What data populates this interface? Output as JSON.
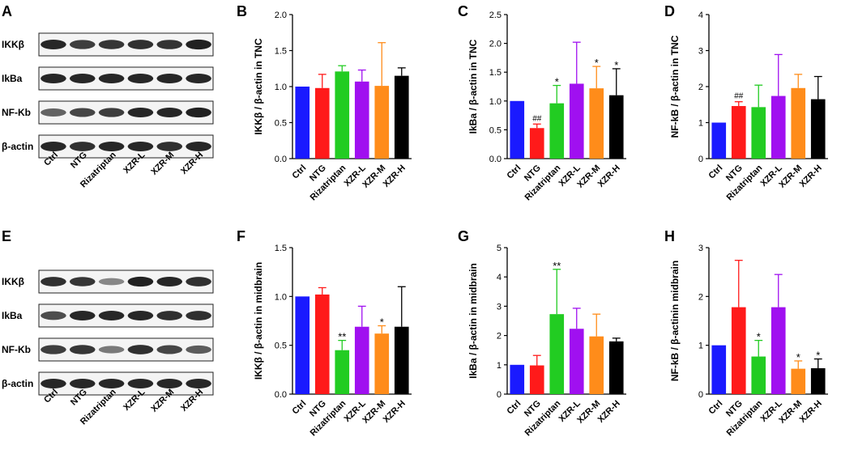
{
  "panel_letters": [
    "A",
    "B",
    "C",
    "D",
    "E",
    "F",
    "G",
    "H"
  ],
  "lanes": [
    "Ctrl",
    "NTG",
    "Rizatriptan",
    "XZR-L",
    "XZR-M",
    "XZR-H"
  ],
  "blots": [
    {
      "letter": "A",
      "rows": [
        "IKKβ",
        "IkBa",
        "NF-Kb",
        "β-actin"
      ]
    },
    {
      "letter": "E",
      "rows": [
        "IKKβ",
        "IkBa",
        "NF-Kb",
        "β-actin"
      ]
    }
  ],
  "colors": [
    "#1a1aff",
    "#ff1a1a",
    "#22cc22",
    "#a010f0",
    "#ff8c1a",
    "#000000"
  ],
  "chart_data": [
    {
      "letter": "B",
      "type": "bar",
      "ylabel": "IKKβ / β-actin in TNC",
      "ylim": [
        0,
        2.0
      ],
      "ticks": [
        "0.0",
        "0.5",
        "1.0",
        "1.5",
        "2.0"
      ],
      "tick_values": [
        0,
        0.5,
        1.0,
        1.5,
        2.0
      ],
      "categories": [
        "Ctrl",
        "NTG",
        "Rizatriptan",
        "XZR-L",
        "XZR-M",
        "XZR-H"
      ],
      "values": [
        1.0,
        0.98,
        1.21,
        1.07,
        1.01,
        1.15
      ],
      "errors": [
        0,
        0.19,
        0.08,
        0.16,
        0.6,
        0.11
      ],
      "sig": [
        "",
        "",
        "",
        "",
        "",
        ""
      ]
    },
    {
      "letter": "C",
      "type": "bar",
      "ylabel": "IkBa / β-actin in TNC",
      "ylim": [
        0,
        2.5
      ],
      "ticks": [
        "0.0",
        "0.5",
        "1.0",
        "1.5",
        "2.0",
        "2.5"
      ],
      "tick_values": [
        0,
        0.5,
        1.0,
        1.5,
        2.0,
        2.5
      ],
      "categories": [
        "Ctrl",
        "NTG",
        "Rizatriptan",
        "XZR-L",
        "XZR-M",
        "XZR-H"
      ],
      "values": [
        1.0,
        0.53,
        0.96,
        1.3,
        1.22,
        1.1
      ],
      "errors": [
        0,
        0.07,
        0.31,
        0.72,
        0.38,
        0.46
      ],
      "sig": [
        "",
        "##",
        "*",
        "",
        "*",
        "*"
      ]
    },
    {
      "letter": "D",
      "type": "bar",
      "ylabel": "NF-kB / β-actin in TNC",
      "ylim": [
        0,
        4
      ],
      "ticks": [
        "0",
        "1",
        "2",
        "3",
        "4"
      ],
      "tick_values": [
        0,
        1,
        2,
        3,
        4
      ],
      "categories": [
        "Ctrl",
        "NTG",
        "Rizatriptan",
        "XZR-L",
        "XZR-M",
        "XZR-H"
      ],
      "values": [
        1.0,
        1.46,
        1.43,
        1.74,
        1.96,
        1.65
      ],
      "errors": [
        0,
        0.12,
        0.61,
        1.15,
        0.38,
        0.63
      ],
      "sig": [
        "",
        "##",
        "",
        "",
        "",
        ""
      ]
    },
    {
      "letter": "F",
      "type": "bar",
      "ylabel": "IKKβ / β-actin in midbrain",
      "ylim": [
        0,
        1.5
      ],
      "ticks": [
        "0.0",
        "0.5",
        "1.0",
        "1.5"
      ],
      "tick_values": [
        0,
        0.5,
        1.0,
        1.5
      ],
      "categories": [
        "Ctrl",
        "NTG",
        "Rizatriptan",
        "XZR-L",
        "XZR-M",
        "XZR-H"
      ],
      "values": [
        1.0,
        1.02,
        0.45,
        0.69,
        0.62,
        0.69
      ],
      "errors": [
        0,
        0.07,
        0.1,
        0.21,
        0.08,
        0.41
      ],
      "sig": [
        "",
        "",
        "**",
        "",
        "*",
        ""
      ]
    },
    {
      "letter": "G",
      "type": "bar",
      "ylabel": "IkBa / β-actin in midbrain",
      "ylim": [
        0,
        5
      ],
      "ticks": [
        "0",
        "1",
        "2",
        "3",
        "4",
        "5"
      ],
      "tick_values": [
        0,
        1,
        2,
        3,
        4,
        5
      ],
      "categories": [
        "Ctrl",
        "NTG",
        "Rizatriptan",
        "XZR-L",
        "XZR-M",
        "XZR-H"
      ],
      "values": [
        1.0,
        0.98,
        2.73,
        2.23,
        1.97,
        1.8
      ],
      "errors": [
        0,
        0.34,
        1.53,
        0.7,
        0.76,
        0.11
      ],
      "sig": [
        "",
        "",
        "**",
        "",
        "",
        ""
      ]
    },
    {
      "letter": "H",
      "type": "bar",
      "ylabel": "NF-kB / β-actinin midbrain",
      "ylim": [
        0,
        3
      ],
      "ticks": [
        "0",
        "1",
        "2",
        "3"
      ],
      "tick_values": [
        0,
        1,
        2,
        3
      ],
      "categories": [
        "Ctrl",
        "NTG",
        "Rizatriptan",
        "XZR-L",
        "XZR-M",
        "XZR-H"
      ],
      "values": [
        1.0,
        1.78,
        0.77,
        1.78,
        0.52,
        0.53
      ],
      "errors": [
        0,
        0.96,
        0.33,
        0.67,
        0.16,
        0.19
      ],
      "sig": [
        "",
        "",
        "*",
        "",
        "*",
        "*"
      ]
    }
  ]
}
